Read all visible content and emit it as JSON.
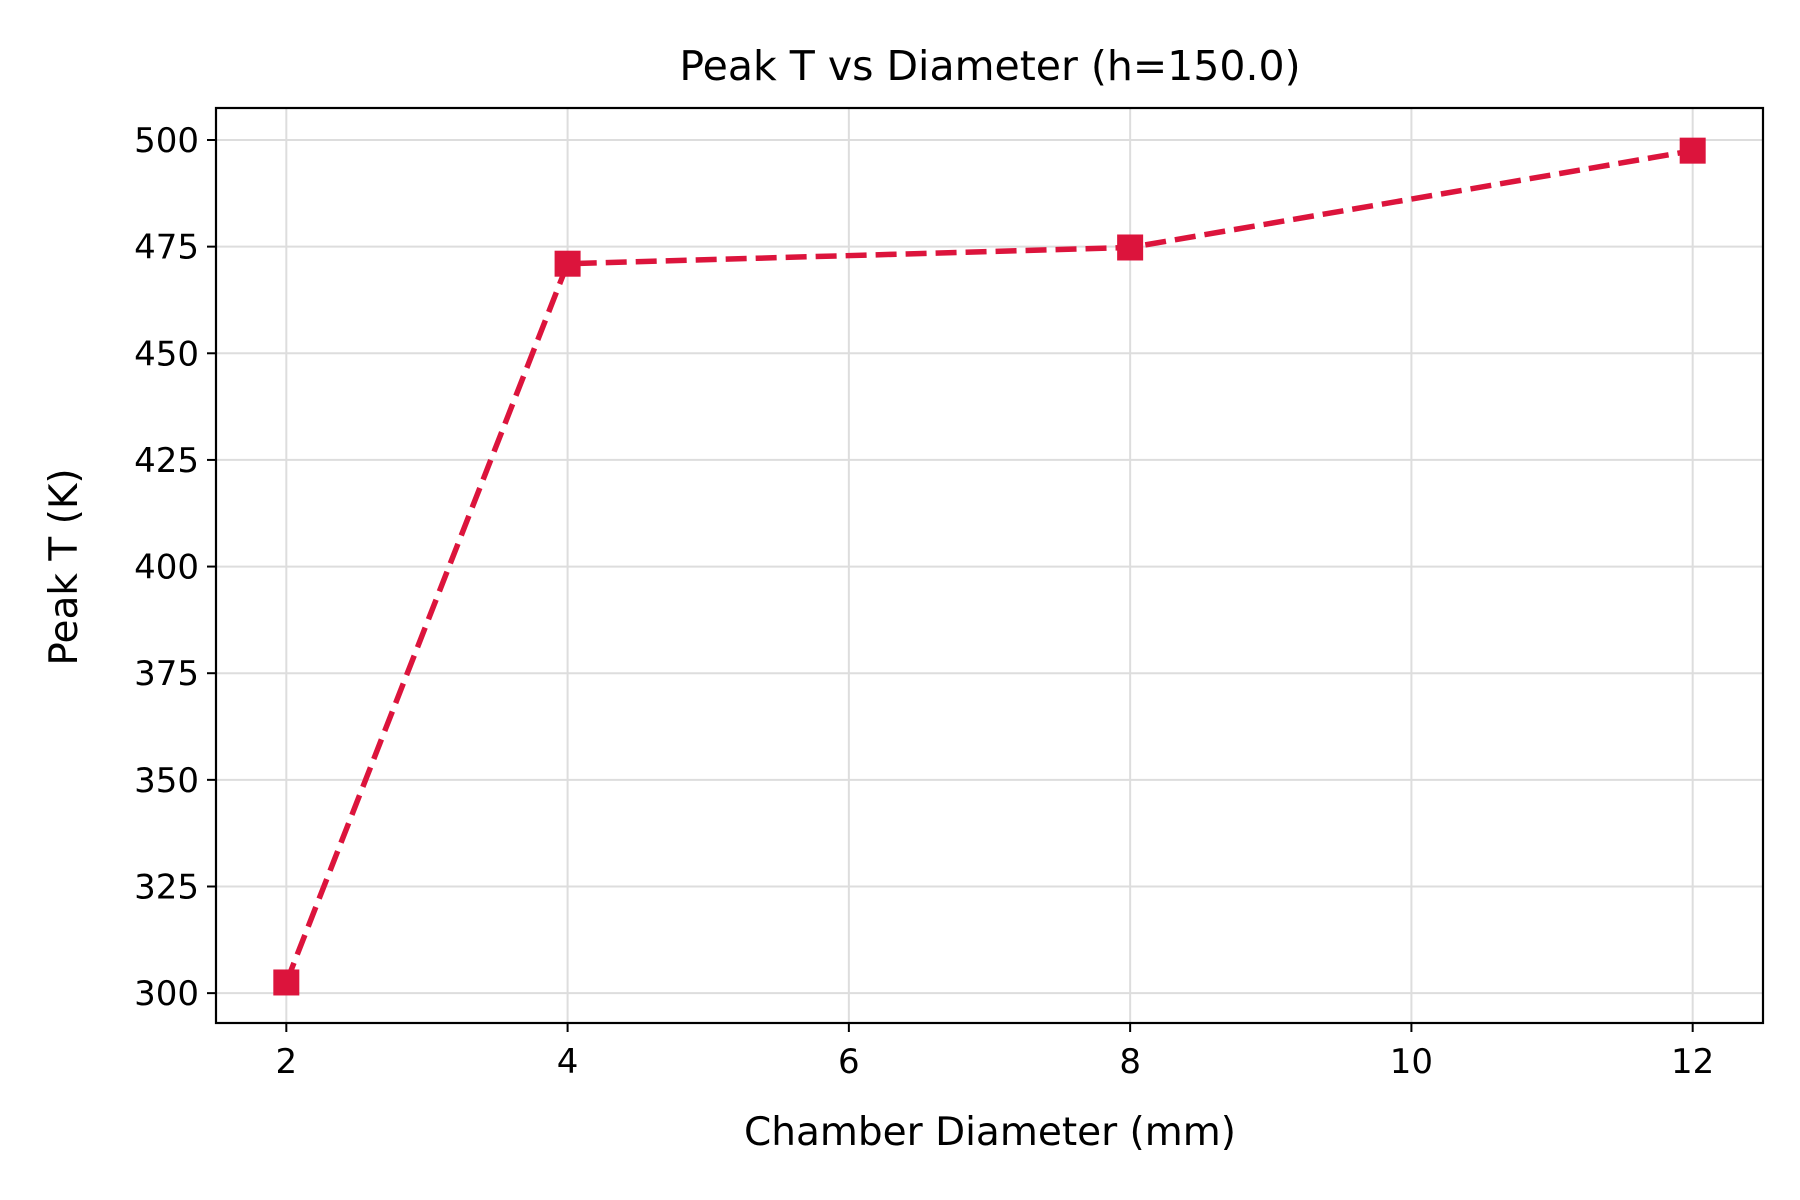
{
  "chart_data": {
    "type": "line",
    "title": "Peak T vs Diameter (h=150.0)",
    "xlabel": "Chamber Diameter (mm)",
    "ylabel": "Peak T (K)",
    "x": [
      2,
      4,
      8,
      12
    ],
    "series": [
      {
        "values": [
          302.5,
          471.0,
          474.8,
          497.5
        ],
        "color": "#dc143c",
        "linestyle": "dashed",
        "marker": "square"
      }
    ],
    "xlim": [
      1.5,
      12.5
    ],
    "ylim": [
      293,
      507.5
    ],
    "xticks": [
      2,
      4,
      6,
      8,
      10,
      12
    ],
    "yticks": [
      300,
      325,
      350,
      375,
      400,
      425,
      450,
      475,
      500
    ],
    "grid": true,
    "legend": "none"
  }
}
